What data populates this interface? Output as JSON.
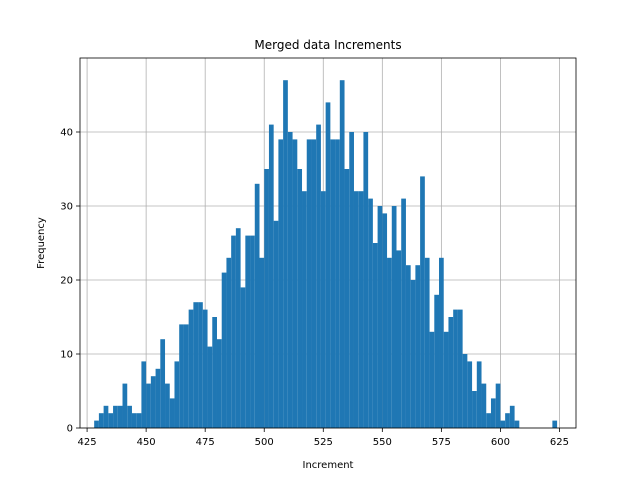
{
  "chart_data": {
    "type": "bar",
    "title": "Merged data Increments",
    "xlabel": "Increment",
    "ylabel": "Frequency",
    "xlim": [
      422,
      632
    ],
    "ylim": [
      0,
      50
    ],
    "xticks": [
      425,
      450,
      475,
      500,
      525,
      550,
      575,
      600,
      625
    ],
    "yticks": [
      0,
      10,
      20,
      30,
      40
    ],
    "grid": true,
    "bar_color": "#1f77b4",
    "bins": [
      {
        "x": 429,
        "y": 1
      },
      {
        "x": 431,
        "y": 2
      },
      {
        "x": 433,
        "y": 3
      },
      {
        "x": 435,
        "y": 2
      },
      {
        "x": 437,
        "y": 3
      },
      {
        "x": 439,
        "y": 3
      },
      {
        "x": 441,
        "y": 6
      },
      {
        "x": 443,
        "y": 3
      },
      {
        "x": 445,
        "y": 2
      },
      {
        "x": 447,
        "y": 2
      },
      {
        "x": 449,
        "y": 9
      },
      {
        "x": 451,
        "y": 6
      },
      {
        "x": 453,
        "y": 7
      },
      {
        "x": 455,
        "y": 8
      },
      {
        "x": 457,
        "y": 12
      },
      {
        "x": 459,
        "y": 6
      },
      {
        "x": 461,
        "y": 4
      },
      {
        "x": 463,
        "y": 9
      },
      {
        "x": 465,
        "y": 14
      },
      {
        "x": 467,
        "y": 14
      },
      {
        "x": 469,
        "y": 16
      },
      {
        "x": 471,
        "y": 17
      },
      {
        "x": 473,
        "y": 17
      },
      {
        "x": 475,
        "y": 16
      },
      {
        "x": 477,
        "y": 11
      },
      {
        "x": 479,
        "y": 15
      },
      {
        "x": 481,
        "y": 12
      },
      {
        "x": 483,
        "y": 21
      },
      {
        "x": 485,
        "y": 23
      },
      {
        "x": 487,
        "y": 26
      },
      {
        "x": 489,
        "y": 27
      },
      {
        "x": 491,
        "y": 19
      },
      {
        "x": 493,
        "y": 26
      },
      {
        "x": 495,
        "y": 26
      },
      {
        "x": 497,
        "y": 33
      },
      {
        "x": 499,
        "y": 23
      },
      {
        "x": 501,
        "y": 35
      },
      {
        "x": 503,
        "y": 41
      },
      {
        "x": 505,
        "y": 28
      },
      {
        "x": 507,
        "y": 39
      },
      {
        "x": 509,
        "y": 47
      },
      {
        "x": 511,
        "y": 40
      },
      {
        "x": 513,
        "y": 39
      },
      {
        "x": 515,
        "y": 35
      },
      {
        "x": 517,
        "y": 32
      },
      {
        "x": 519,
        "y": 39
      },
      {
        "x": 521,
        "y": 39
      },
      {
        "x": 523,
        "y": 41
      },
      {
        "x": 525,
        "y": 32
      },
      {
        "x": 527,
        "y": 44
      },
      {
        "x": 529,
        "y": 39
      },
      {
        "x": 531,
        "y": 39
      },
      {
        "x": 533,
        "y": 47
      },
      {
        "x": 535,
        "y": 35
      },
      {
        "x": 537,
        "y": 40
      },
      {
        "x": 539,
        "y": 32
      },
      {
        "x": 541,
        "y": 32
      },
      {
        "x": 543,
        "y": 40
      },
      {
        "x": 545,
        "y": 31
      },
      {
        "x": 547,
        "y": 25
      },
      {
        "x": 549,
        "y": 30
      },
      {
        "x": 551,
        "y": 29
      },
      {
        "x": 553,
        "y": 23
      },
      {
        "x": 555,
        "y": 30
      },
      {
        "x": 557,
        "y": 24
      },
      {
        "x": 559,
        "y": 31
      },
      {
        "x": 561,
        "y": 22
      },
      {
        "x": 563,
        "y": 20
      },
      {
        "x": 565,
        "y": 22
      },
      {
        "x": 567,
        "y": 34
      },
      {
        "x": 569,
        "y": 23
      },
      {
        "x": 571,
        "y": 13
      },
      {
        "x": 573,
        "y": 18
      },
      {
        "x": 575,
        "y": 23
      },
      {
        "x": 577,
        "y": 13
      },
      {
        "x": 579,
        "y": 15
      },
      {
        "x": 581,
        "y": 16
      },
      {
        "x": 583,
        "y": 16
      },
      {
        "x": 585,
        "y": 10
      },
      {
        "x": 587,
        "y": 9
      },
      {
        "x": 589,
        "y": 5
      },
      {
        "x": 591,
        "y": 9
      },
      {
        "x": 593,
        "y": 6
      },
      {
        "x": 595,
        "y": 2
      },
      {
        "x": 597,
        "y": 4
      },
      {
        "x": 599,
        "y": 6
      },
      {
        "x": 601,
        "y": 1
      },
      {
        "x": 603,
        "y": 2
      },
      {
        "x": 605,
        "y": 3
      },
      {
        "x": 607,
        "y": 1
      },
      {
        "x": 623,
        "y": 1
      }
    ],
    "bin_width": 2
  }
}
